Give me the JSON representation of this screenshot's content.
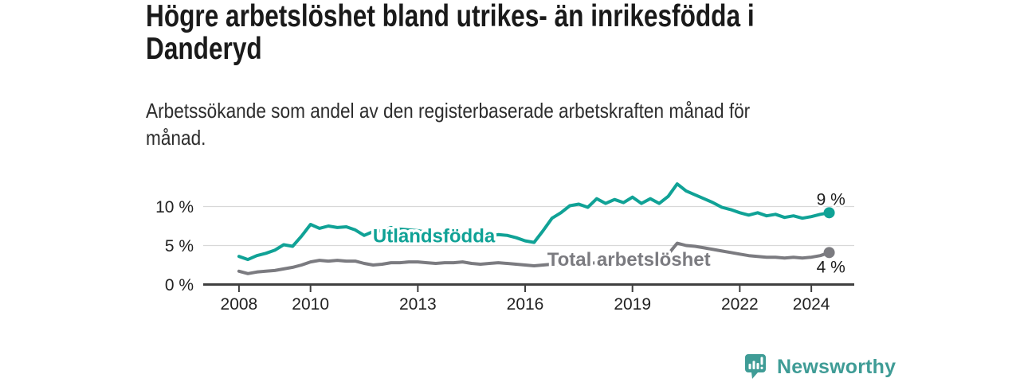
{
  "header": {
    "title_lines": [
      "Högre arbetslöshet bland utrikes- än inrikesfödda i",
      "Danderyd"
    ],
    "subtitle_lines": [
      "Arbetssökande som andel av den registerbaserade arbetskraften månad för",
      "månad."
    ]
  },
  "chart_data": {
    "type": "line",
    "title": "Högre arbetslöshet bland utrikes- än inrikesfödda i Danderyd",
    "subtitle": "Arbetssökande som andel av den registerbaserade arbetskraften månad för månad.",
    "xlabel": "",
    "ylabel": "",
    "grid": "horizontal",
    "legend": "inline-labels",
    "xlim": [
      2007.0,
      2025.2
    ],
    "ylim": [
      0,
      13.6
    ],
    "y_axis": {
      "tick_values": [
        0,
        5,
        10
      ],
      "tick_labels": [
        "0 %",
        "5 %",
        "10 %"
      ]
    },
    "x_axis": {
      "tick_values": [
        2008,
        2010,
        2013,
        2016,
        2019,
        2022,
        2024
      ],
      "tick_labels": [
        "2008",
        "2010",
        "2013",
        "2016",
        "2019",
        "2022",
        "2024"
      ]
    },
    "x": [
      2008.0,
      2008.25,
      2008.5,
      2008.75,
      2009.0,
      2009.25,
      2009.5,
      2009.75,
      2010.0,
      2010.25,
      2010.5,
      2010.75,
      2011.0,
      2011.25,
      2011.5,
      2011.75,
      2012.0,
      2012.25,
      2012.5,
      2012.75,
      2013.0,
      2013.25,
      2013.5,
      2013.75,
      2014.0,
      2014.25,
      2014.5,
      2014.75,
      2015.0,
      2015.25,
      2015.5,
      2015.75,
      2016.0,
      2016.25,
      2016.5,
      2016.75,
      2017.0,
      2017.25,
      2017.5,
      2017.75,
      2018.0,
      2018.25,
      2018.5,
      2018.75,
      2019.0,
      2019.25,
      2019.5,
      2019.75,
      2020.0,
      2020.25,
      2020.5,
      2020.75,
      2021.0,
      2021.25,
      2021.5,
      2021.75,
      2022.0,
      2022.25,
      2022.5,
      2022.75,
      2023.0,
      2023.25,
      2023.5,
      2023.75,
      2024.0,
      2024.25,
      2024.5
    ],
    "series": [
      {
        "name": "Utlandsfödda",
        "color": "#10a296",
        "end_label": "9 %",
        "end_label_pos": "above",
        "label_at": {
          "x": 2013.45,
          "y": 6.2
        },
        "values": [
          3.6,
          3.2,
          3.7,
          4.0,
          4.4,
          5.1,
          4.9,
          6.2,
          7.7,
          7.2,
          7.5,
          7.3,
          7.4,
          7.0,
          6.3,
          6.8,
          6.9,
          7.3,
          7.1,
          7.0,
          6.9,
          6.7,
          6.8,
          6.6,
          6.5,
          6.7,
          6.4,
          6.3,
          6.2,
          6.4,
          6.3,
          6.0,
          5.6,
          5.4,
          6.9,
          8.5,
          9.2,
          10.1,
          10.3,
          9.9,
          11.0,
          10.4,
          10.9,
          10.5,
          11.2,
          10.4,
          11.0,
          10.4,
          11.3,
          12.9,
          12.0,
          11.5,
          11.0,
          10.5,
          9.9,
          9.6,
          9.2,
          8.9,
          9.2,
          8.8,
          9.0,
          8.6,
          8.8,
          8.5,
          8.7,
          9.0,
          9.2
        ]
      },
      {
        "name": "Total arbetslöshet",
        "color": "#7b7b80",
        "end_label": "4 %",
        "end_label_pos": "below",
        "label_at": {
          "x": 2018.9,
          "y": 3.2
        },
        "values": [
          1.7,
          1.4,
          1.6,
          1.7,
          1.8,
          2.0,
          2.2,
          2.5,
          2.9,
          3.1,
          3.0,
          3.1,
          3.0,
          3.0,
          2.7,
          2.5,
          2.6,
          2.8,
          2.8,
          2.9,
          2.9,
          2.8,
          2.7,
          2.8,
          2.8,
          2.9,
          2.7,
          2.6,
          2.7,
          2.8,
          2.7,
          2.6,
          2.5,
          2.4,
          2.5,
          2.6,
          2.5,
          2.6,
          2.5,
          2.7,
          2.8,
          2.7,
          2.8,
          2.9,
          3.0,
          3.1,
          3.2,
          3.4,
          3.9,
          5.3,
          5.0,
          4.9,
          4.7,
          4.5,
          4.3,
          4.1,
          3.9,
          3.7,
          3.6,
          3.5,
          3.5,
          3.4,
          3.5,
          3.4,
          3.5,
          3.7,
          4.1
        ]
      }
    ],
    "colors": {
      "grid": "#d8d8d8",
      "axis": "#3f3f3f",
      "tick_text": "#222222",
      "end_label_text": "#1c1c1c"
    }
  },
  "branding": {
    "logo_text": "Newsworthy",
    "logo_color": "#3f9c96"
  }
}
